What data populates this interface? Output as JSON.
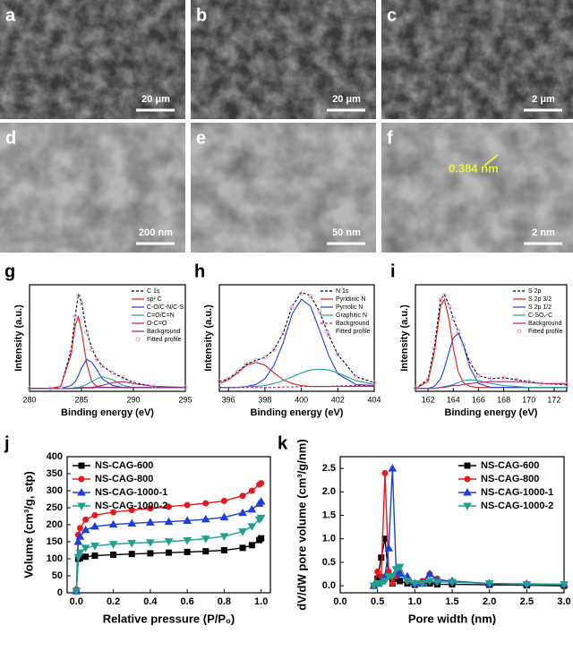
{
  "images": [
    {
      "label": "a",
      "scale_bar": "20 μm"
    },
    {
      "label": "b",
      "scale_bar": "20 μm"
    },
    {
      "label": "c",
      "scale_bar": "2 μm"
    },
    {
      "label": "d",
      "scale_bar": "200 nm"
    },
    {
      "label": "e",
      "scale_bar": "50 nm"
    },
    {
      "label": "f",
      "scale_bar": "2 nm",
      "annotation": "0.384 nm"
    }
  ],
  "chart_data": [
    {
      "type": "line",
      "label": "g",
      "xlabel": "Binding energy (eV)",
      "ylabel": "Intensity (a.u.)",
      "xlim": [
        280,
        295
      ],
      "xticks": [
        280,
        285,
        290,
        295
      ],
      "ylim": [
        0,
        1.1
      ],
      "legend": "upper right",
      "x": [
        280,
        282,
        283,
        284,
        284.4,
        284.7,
        285,
        285.5,
        286,
        286.5,
        287,
        288,
        289,
        290,
        292,
        295
      ],
      "series": [
        {
          "name": "C 1s",
          "color": "#000000",
          "dash": true,
          "values": [
            0.03,
            0.03,
            0.05,
            0.42,
            0.78,
            1.0,
            0.92,
            0.62,
            0.44,
            0.33,
            0.26,
            0.19,
            0.14,
            0.09,
            0.05,
            0.04
          ]
        },
        {
          "name": "sp² C",
          "color": "#e8191d",
          "values": [
            0.03,
            0.03,
            0.05,
            0.38,
            0.68,
            0.77,
            0.63,
            0.29,
            0.1,
            0.05,
            0.04,
            0.04,
            0.04,
            0.04,
            0.04,
            0.04
          ]
        },
        {
          "name": "C-O/C-N/C-S",
          "color": "#1f3fdd",
          "values": [
            0.03,
            0.03,
            0.03,
            0.06,
            0.1,
            0.16,
            0.24,
            0.33,
            0.3,
            0.22,
            0.13,
            0.06,
            0.04,
            0.04,
            0.04,
            0.04
          ]
        },
        {
          "name": "C=O/C=N",
          "color": "#20a090",
          "values": [
            0.03,
            0.03,
            0.03,
            0.03,
            0.04,
            0.04,
            0.05,
            0.07,
            0.1,
            0.13,
            0.15,
            0.12,
            0.06,
            0.04,
            0.04,
            0.04
          ]
        },
        {
          "name": "O-C=O",
          "color": "#b0207a",
          "values": [
            0.03,
            0.03,
            0.03,
            0.03,
            0.03,
            0.03,
            0.04,
            0.04,
            0.04,
            0.05,
            0.06,
            0.09,
            0.1,
            0.08,
            0.05,
            0.04
          ]
        },
        {
          "name": "Background",
          "color": "#7a2a7a",
          "values": [
            0.03,
            0.03,
            0.03,
            0.03,
            0.03,
            0.03,
            0.035,
            0.035,
            0.035,
            0.04,
            0.04,
            0.04,
            0.04,
            0.04,
            0.04,
            0.04
          ]
        },
        {
          "name": "Fitted profile",
          "color": "#d9a0d0",
          "line": false,
          "marker": "circle",
          "values": [
            0.03,
            0.03,
            0.05,
            0.41,
            0.77,
            0.99,
            0.91,
            0.61,
            0.43,
            0.33,
            0.26,
            0.19,
            0.14,
            0.09,
            0.05,
            0.04
          ]
        }
      ]
    },
    {
      "type": "line",
      "label": "h",
      "xlabel": "Binding energy (eV)",
      "ylabel": "Intensity (a.u.)",
      "xlim": [
        395.5,
        404
      ],
      "xticks": [
        396,
        398,
        400,
        402,
        404
      ],
      "ylim": [
        0,
        1.1
      ],
      "legend": "upper right",
      "x": [
        395.5,
        396,
        396.5,
        397,
        397.5,
        398,
        398.5,
        399,
        399.5,
        400,
        400.5,
        401,
        401.5,
        402,
        403,
        404
      ],
      "series": [
        {
          "name": "N 1s",
          "color": "#000000",
          "dash": true,
          "values": [
            0.1,
            0.13,
            0.2,
            0.28,
            0.32,
            0.35,
            0.43,
            0.6,
            0.88,
            1.02,
            0.99,
            0.82,
            0.58,
            0.38,
            0.15,
            0.09
          ]
        },
        {
          "name": "Pyridinic N",
          "color": "#e8191d",
          "values": [
            0.08,
            0.12,
            0.19,
            0.27,
            0.3,
            0.27,
            0.19,
            0.12,
            0.08,
            0.06,
            0.05,
            0.05,
            0.05,
            0.05,
            0.05,
            0.05
          ]
        },
        {
          "name": "Pyrrolic N",
          "color": "#1f3fdd",
          "values": [
            0.04,
            0.04,
            0.04,
            0.05,
            0.07,
            0.13,
            0.27,
            0.5,
            0.8,
            0.95,
            0.88,
            0.63,
            0.37,
            0.18,
            0.07,
            0.06
          ]
        },
        {
          "name": "Graphitic N",
          "color": "#20a090",
          "values": [
            0.04,
            0.04,
            0.04,
            0.05,
            0.05,
            0.06,
            0.08,
            0.11,
            0.15,
            0.19,
            0.22,
            0.23,
            0.22,
            0.19,
            0.11,
            0.07
          ]
        },
        {
          "name": "Background",
          "color": "#b0207a",
          "dash": true,
          "values": [
            0.04,
            0.04,
            0.04,
            0.04,
            0.04,
            0.04,
            0.04,
            0.045,
            0.045,
            0.05,
            0.05,
            0.05,
            0.05,
            0.055,
            0.06,
            0.06
          ]
        },
        {
          "name": "Fitted profile",
          "color": "#d9a0d0",
          "line": false,
          "marker": "circle",
          "values": [
            0.1,
            0.13,
            0.2,
            0.28,
            0.32,
            0.35,
            0.43,
            0.6,
            0.87,
            1.01,
            0.98,
            0.82,
            0.58,
            0.38,
            0.15,
            0.09
          ]
        }
      ]
    },
    {
      "type": "line",
      "label": "i",
      "xlabel": "Binding energy (eV)",
      "ylabel": "Intensity (a.u.)",
      "xlim": [
        161,
        173
      ],
      "xticks": [
        162,
        164,
        166,
        168,
        170,
        172
      ],
      "ylim": [
        0,
        1.1
      ],
      "legend": "upper right",
      "x": [
        161,
        162,
        162.5,
        163,
        163.3,
        163.7,
        164,
        164.4,
        164.8,
        165.3,
        166,
        167,
        168,
        169,
        170,
        171,
        173
      ],
      "series": [
        {
          "name": "S 2p",
          "color": "#000000",
          "dash": true,
          "values": [
            0.03,
            0.12,
            0.45,
            0.95,
            1.0,
            0.88,
            0.75,
            0.62,
            0.48,
            0.3,
            0.16,
            0.13,
            0.14,
            0.12,
            0.1,
            0.08,
            0.07
          ]
        },
        {
          "name": "S 2p 3/2",
          "color": "#e8191d",
          "values": [
            0.03,
            0.1,
            0.4,
            0.88,
            0.95,
            0.72,
            0.45,
            0.2,
            0.09,
            0.05,
            0.04,
            0.04,
            0.04,
            0.04,
            0.04,
            0.04,
            0.04
          ]
        },
        {
          "name": "S 2p 1/2",
          "color": "#1f3fdd",
          "values": [
            0.03,
            0.03,
            0.05,
            0.13,
            0.24,
            0.42,
            0.55,
            0.6,
            0.48,
            0.25,
            0.08,
            0.04,
            0.04,
            0.04,
            0.04,
            0.04,
            0.04
          ]
        },
        {
          "name": "C-SOₓ-C",
          "color": "#20a090",
          "values": [
            0.03,
            0.03,
            0.03,
            0.04,
            0.05,
            0.06,
            0.07,
            0.09,
            0.11,
            0.12,
            0.11,
            0.08,
            0.06,
            0.05,
            0.04,
            0.04,
            0.04
          ]
        },
        {
          "name": "Background",
          "color": "#b0207a",
          "values": [
            0.03,
            0.03,
            0.03,
            0.04,
            0.04,
            0.05,
            0.06,
            0.06,
            0.07,
            0.08,
            0.09,
            0.1,
            0.1,
            0.1,
            0.09,
            0.08,
            0.08
          ]
        },
        {
          "name": "Fitted profile",
          "color": "#d9a0d0",
          "line": false,
          "marker": "circle",
          "values": [
            0.03,
            0.12,
            0.44,
            0.94,
            0.99,
            0.88,
            0.75,
            0.62,
            0.48,
            0.3,
            0.16,
            0.13,
            0.14,
            0.12,
            0.1,
            0.08,
            0.07
          ]
        }
      ]
    },
    {
      "type": "line",
      "label": "j",
      "xlabel": "Relative pressure (P/P₀)",
      "ylabel": "Volume (cm³/g, stp)",
      "xlim": [
        -0.05,
        1.05
      ],
      "xticks": [
        {
          "value": 0,
          "label": "0.0"
        },
        0.2,
        0.4,
        0.6,
        0.8,
        {
          "value": 1,
          "label": "1.0"
        }
      ],
      "ylim": [
        0,
        400
      ],
      "yticks": [
        0,
        50,
        100,
        150,
        200,
        250,
        300,
        350,
        400
      ],
      "legend": "upper left",
      "x": [
        0,
        0.01,
        0.02,
        0.05,
        0.1,
        0.2,
        0.3,
        0.4,
        0.5,
        0.6,
        0.7,
        0.8,
        0.9,
        0.95,
        0.99,
        1.0
      ],
      "series": [
        {
          "name": "NS-CAG-600",
          "color": "#000000",
          "marker": "square",
          "values": [
            5,
            100,
            102,
            106,
            109,
            112,
            114,
            116,
            118,
            120,
            122,
            125,
            132,
            140,
            155,
            160
          ]
        },
        {
          "name": "NS-CAG-800",
          "color": "#e8191d",
          "marker": "circle",
          "values": [
            10,
            170,
            190,
            215,
            228,
            237,
            243,
            248,
            253,
            258,
            263,
            270,
            285,
            300,
            318,
            322
          ]
        },
        {
          "name": "NS-CAG-1000-1",
          "color": "#1f3fdd",
          "marker": "triangle-up",
          "values": [
            5,
            150,
            165,
            185,
            195,
            201,
            204,
            207,
            209,
            212,
            216,
            222,
            235,
            245,
            262,
            268
          ]
        },
        {
          "name": "NS-CAG-1000-2",
          "color": "#20a090",
          "marker": "triangle-down",
          "values": [
            5,
            105,
            118,
            132,
            138,
            143,
            146,
            148,
            151,
            154,
            159,
            166,
            180,
            195,
            215,
            220
          ]
        }
      ]
    },
    {
      "type": "line",
      "label": "k",
      "xlabel": "Pore width (nm)",
      "ylabel": "dV/dW pore volume (cm³/g/nm)",
      "xlim": [
        0,
        3.0
      ],
      "xticks": [
        {
          "value": 0,
          "label": "0.0"
        },
        0.5,
        {
          "value": 1,
          "label": "1.0"
        },
        1.5,
        {
          "value": 2,
          "label": "2.0"
        },
        2.5,
        {
          "value": 3,
          "label": "3.0"
        }
      ],
      "ylim": [
        -0.15,
        2.75
      ],
      "yticks": [
        {
          "value": 0,
          "label": "0.0"
        },
        0.5,
        {
          "value": 1,
          "label": "1.0"
        },
        1.5,
        {
          "value": 2,
          "label": "2.0"
        },
        2.5
      ],
      "legend": "upper right",
      "x": [
        0.45,
        0.5,
        0.55,
        0.6,
        0.65,
        0.7,
        0.75,
        0.8,
        0.9,
        1.0,
        1.1,
        1.2,
        1.3,
        1.5,
        2.0,
        2.5,
        3.0
      ],
      "series": [
        {
          "name": "NS-CAG-600",
          "color": "#000000",
          "marker": "square",
          "values": [
            0,
            0.15,
            0.6,
            1.0,
            0.2,
            0.05,
            0.15,
            0.1,
            0.05,
            0.02,
            0.05,
            0.05,
            0.03,
            0.03,
            0.02,
            0.01,
            0
          ]
        },
        {
          "name": "NS-CAG-800",
          "color": "#e8191d",
          "marker": "circle",
          "values": [
            0,
            0.3,
            0.2,
            2.4,
            0.3,
            0.05,
            0.2,
            0.3,
            0.1,
            0.05,
            0.1,
            0.25,
            0.15,
            0.08,
            0.05,
            0.03,
            0.02
          ]
        },
        {
          "name": "NS-CAG-1000-1",
          "color": "#1f3fdd",
          "marker": "triangle-up",
          "values": [
            0,
            0.05,
            0.1,
            0.2,
            0.8,
            2.5,
            0.3,
            0.25,
            0.2,
            0.05,
            0.05,
            0.25,
            0.12,
            0.1,
            0.05,
            0.04,
            0.03
          ]
        },
        {
          "name": "NS-CAG-1000-2",
          "color": "#20a090",
          "marker": "triangle-down",
          "values": [
            0,
            0.05,
            0.05,
            0.1,
            0.2,
            0.2,
            0.35,
            0.4,
            0.1,
            0.05,
            0.05,
            0.1,
            0.08,
            0.08,
            0.05,
            0.03,
            0.03
          ]
        }
      ]
    }
  ]
}
